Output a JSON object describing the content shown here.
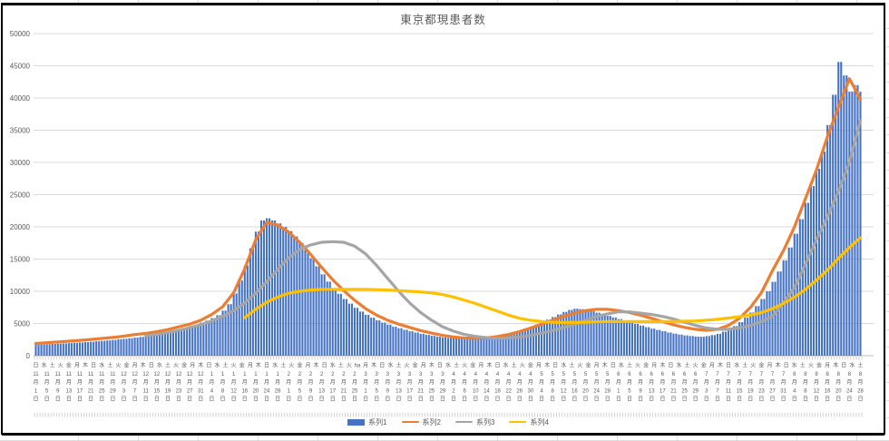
{
  "chart": {
    "title": "東京都現患者数",
    "title_color": "#595959",
    "axis_label_color": "#595959",
    "gridline_color": "#D9D9D9",
    "axis_line_color": "#BFBFBF",
    "y_tick_labels": [
      "0",
      "5000",
      "10000",
      "15000",
      "20000",
      "25000",
      "30000",
      "35000",
      "40000",
      "45000",
      "50000"
    ],
    "legend": [
      {
        "label": "系列1",
        "color": "#4472C4",
        "type": "bar"
      },
      {
        "label": "系列2",
        "color": "#ED7D31",
        "type": "line"
      },
      {
        "label": "系列3",
        "color": "#A5A5A5",
        "type": "line"
      },
      {
        "label": "系列4",
        "color": "#FFC000",
        "type": "line"
      }
    ]
  },
  "chart_data": {
    "type": "bar+line combo",
    "title": "東京都現患者数",
    "ylim": [
      0,
      50000
    ],
    "y_step": 5000,
    "x_axis": {
      "days_total": 301,
      "start_date": "11月1日",
      "end_date": "8月28日",
      "weekday_label_interval_days": 3,
      "date_label_interval_days": 4,
      "weekday_labels": [
        "日",
        "水",
        "土",
        "火",
        "金",
        "月",
        "木",
        "日",
        "水",
        "土",
        "火",
        "金",
        "月",
        "木",
        "日",
        "水",
        "土",
        "火",
        "金",
        "月",
        "木",
        "日",
        "水",
        "土",
        "火",
        "金",
        "月",
        "木",
        "日",
        "水",
        "土",
        "火",
        "金",
        "月",
        "木",
        "日",
        "水",
        "土",
        "火",
        "ha",
        "月",
        "木",
        "日",
        "水",
        "土",
        "火",
        "金",
        "月",
        "木",
        "日",
        "水",
        "土",
        "火",
        "金",
        "月",
        "木",
        "日",
        "水",
        "土",
        "火",
        "金",
        "月",
        "木",
        "日",
        "水",
        "土",
        "火",
        "金",
        "月",
        "木",
        "日",
        "水",
        "土",
        "火",
        "金",
        "月",
        "木",
        "日",
        "水",
        "土",
        "火",
        "金",
        "月",
        "木",
        "日",
        "水",
        "土",
        "火",
        "金",
        "月",
        "木",
        "日",
        "水",
        "土",
        "火",
        "金",
        "月",
        "木",
        "日",
        "水",
        "土"
      ],
      "date_labels": [
        "11月1日",
        "11月5日",
        "11月9日",
        "11月13日",
        "11月17日",
        "11月21日",
        "11月25日",
        "11月29日",
        "12月3日",
        "12月7日",
        "12月11日",
        "12月15日",
        "12月19日",
        "12月23日",
        "12月27日",
        "12月31日",
        "1月4日",
        "1月8日",
        "1月12日",
        "1月16日",
        "1月20日",
        "1月24日",
        "1月28日",
        "2月1日",
        "2月5日",
        "2月9日",
        "2月13日",
        "2月17日",
        "2月21日",
        "2月25日",
        "3月1日",
        "3月5日",
        "3月9日",
        "3月13日",
        "3月17日",
        "3月21日",
        "3月25日",
        "3月29日",
        "4月2日",
        "4月6日",
        "4月10日",
        "4月14日",
        "4月18日",
        "4月22日",
        "4月26日",
        "4月30日",
        "5月4日",
        "5月8日",
        "5月12日",
        "5月16日",
        "5月20日",
        "5月24日",
        "5月28日",
        "6月1日",
        "6月5日",
        "6月9日",
        "6月13日",
        "6月17日",
        "6月21日",
        "6月25日",
        "6月29日",
        "7月3日",
        "7月7日",
        "7月11日",
        "7月15日",
        "7月19日",
        "7月23日",
        "7月27日",
        "7月31日",
        "8月4日",
        "8月8日",
        "8月12日",
        "8月16日",
        "8月20日",
        "8月24日",
        "8月28日"
      ]
    },
    "series": [
      {
        "name": "系列1",
        "type": "bar",
        "color": "#4472C4",
        "step_days": 2,
        "values": [
          1700,
          1740,
          1790,
          1830,
          1870,
          1910,
          1960,
          2000,
          2060,
          2110,
          2170,
          2240,
          2310,
          2380,
          2450,
          2540,
          2620,
          2710,
          2810,
          2920,
          3040,
          3150,
          3310,
          3460,
          3620,
          3810,
          4040,
          4270,
          4500,
          4810,
          5130,
          5440,
          5830,
          6280,
          7000,
          8000,
          9670,
          11670,
          14000,
          16670,
          19250,
          21000,
          21330,
          21000,
          20530,
          19980,
          19330,
          18500,
          17500,
          16380,
          15130,
          13880,
          12630,
          11500,
          10500,
          9600,
          8800,
          8080,
          7430,
          6850,
          6350,
          5900,
          5500,
          5140,
          4820,
          4500,
          4260,
          4020,
          3800,
          3600,
          3400,
          3240,
          3080,
          2950,
          2850,
          2750,
          2690,
          2630,
          2600,
          2600,
          2600,
          2680,
          2760,
          2880,
          3040,
          3200,
          3440,
          3680,
          3940,
          4220,
          4500,
          4860,
          5220,
          5600,
          6000,
          6400,
          6800,
          7100,
          7300,
          7230,
          7000,
          6900,
          6680,
          6430,
          6180,
          5930,
          5680,
          5430,
          5180,
          4930,
          4680,
          4430,
          4200,
          4000,
          3800,
          3600,
          3430,
          3280,
          3150,
          3050,
          2970,
          2950,
          3050,
          3200,
          3400,
          3730,
          4130,
          4600,
          5200,
          5900,
          6700,
          7700,
          8800,
          10000,
          11470,
          13070,
          14800,
          16800,
          18930,
          21200,
          23730,
          26330,
          29000,
          31670,
          35800,
          40500,
          45600,
          43500,
          41000,
          42000,
          41000
        ]
      },
      {
        "name": "系列2",
        "type": "line",
        "color": "#ED7D31",
        "step_days": 4,
        "values": [
          1900,
          2010,
          2130,
          2250,
          2380,
          2520,
          2670,
          2830,
          3030,
          3280,
          3450,
          3720,
          4060,
          4480,
          4900,
          5500,
          6400,
          7600,
          9800,
          13500,
          18000,
          20700,
          20300,
          19200,
          17600,
          15700,
          13700,
          11800,
          10100,
          8600,
          7300,
          6300,
          5500,
          4900,
          4400,
          3900,
          3500,
          3150,
          2900,
          2750,
          2700,
          2780,
          2980,
          3300,
          3750,
          4300,
          4900,
          5500,
          6100,
          6600,
          7000,
          7200,
          7200,
          7000,
          6700,
          6300,
          5800,
          5300,
          4800,
          4400,
          4100,
          3950,
          4100,
          4700,
          5800,
          7500,
          9800,
          13200,
          16300,
          20000,
          24400,
          28800,
          34000,
          38500,
          43000,
          39800
        ]
      },
      {
        "name": "系列3",
        "type": "line",
        "color": "#A5A5A5",
        "step_days": 4,
        "values": [
          null,
          null,
          null,
          null,
          null,
          null,
          null,
          null,
          null,
          null,
          3100,
          3300,
          3600,
          3950,
          4350,
          4800,
          5400,
          6100,
          7000,
          8200,
          9700,
          11500,
          13400,
          15200,
          16500,
          17200,
          17600,
          17700,
          17600,
          17000,
          15800,
          14000,
          12000,
          10000,
          8200,
          6700,
          5500,
          4500,
          3800,
          3300,
          3000,
          2800,
          2700,
          2750,
          2900,
          3150,
          3500,
          3900,
          4400,
          4900,
          5500,
          6100,
          6500,
          6800,
          6800,
          6600,
          6400,
          6100,
          5700,
          5200,
          4700,
          4300,
          4100,
          4100,
          4300,
          4700,
          5300,
          6100,
          8200,
          10600,
          14200,
          18000,
          21500,
          25500,
          30000,
          36500
        ]
      },
      {
        "name": "系列4",
        "type": "line",
        "color": "#FFC000",
        "step_days": 4,
        "values": [
          null,
          null,
          null,
          null,
          null,
          null,
          null,
          null,
          null,
          null,
          null,
          null,
          null,
          null,
          null,
          null,
          null,
          null,
          null,
          5900,
          7200,
          8300,
          9100,
          9700,
          10000,
          10200,
          10300,
          10300,
          10300,
          10300,
          10300,
          10250,
          10200,
          10100,
          10000,
          9900,
          9750,
          9500,
          9100,
          8600,
          8100,
          7500,
          6900,
          6300,
          5800,
          5500,
          5300,
          5200,
          5150,
          5150,
          5200,
          5250,
          5300,
          5300,
          5300,
          5300,
          5300,
          5300,
          5300,
          5350,
          5400,
          5500,
          5650,
          5850,
          6050,
          6300,
          6700,
          7300,
          8100,
          9100,
          10300,
          11700,
          13300,
          15100,
          16800,
          18300
        ]
      }
    ]
  }
}
